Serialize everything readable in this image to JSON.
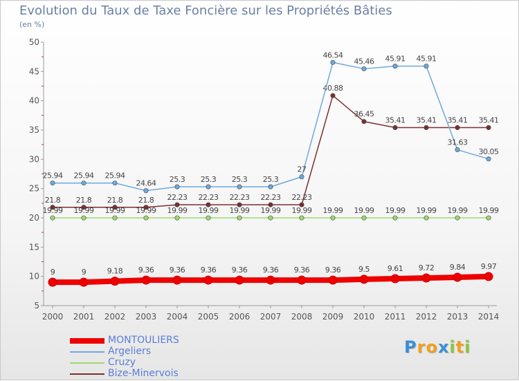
{
  "title": "Evolution du Taux de Taxe Foncière sur les Propriétés Bâties",
  "subtitle": "(en %)",
  "chart_data": {
    "type": "line",
    "title": "Evolution du Taux de Taxe Foncière sur les Propriétés Bâties",
    "ylabel": "(en %)",
    "xlabel": "",
    "ylim": [
      5,
      50
    ],
    "yticks": [
      5,
      10,
      15,
      20,
      25,
      30,
      35,
      40,
      45,
      50
    ],
    "grid": false,
    "legend": "bottom-left",
    "categories": [
      "2000",
      "2001",
      "2002",
      "2003",
      "2004",
      "2005",
      "2006",
      "2007",
      "2008",
      "2009",
      "2010",
      "2011",
      "2012",
      "2013",
      "2014"
    ],
    "series": [
      {
        "name": "MONTOULIERS",
        "color": "#ee0000",
        "labels": [
          "9",
          "9",
          "9.18",
          "9.36",
          "9.36",
          "9.36",
          "9.36",
          "9.36",
          "9.36",
          "9.36",
          "9.5",
          "9.61",
          "9.72",
          "9.84",
          "9.97"
        ],
        "values": [
          9,
          9,
          9.18,
          9.36,
          9.36,
          9.36,
          9.36,
          9.36,
          9.36,
          9.36,
          9.5,
          9.61,
          9.72,
          9.84,
          9.97
        ]
      },
      {
        "name": "Argeliers",
        "color": "#6fa8dc",
        "labels": [
          "25.94",
          "25.94",
          "25.94",
          "24.64",
          "25.3",
          "25.3",
          "25.3",
          "25.3",
          "27",
          "46.54",
          "45.46",
          "45.91",
          "45.91",
          "31.63",
          "30.05"
        ],
        "values": [
          25.94,
          25.94,
          25.94,
          24.64,
          25.3,
          25.3,
          25.3,
          25.3,
          27,
          46.54,
          45.46,
          45.91,
          45.91,
          31.63,
          30.05
        ]
      },
      {
        "name": "Cruzy",
        "color": "#9fd86f",
        "labels": [
          "19.99",
          "19.99",
          "19.99",
          "19.99",
          "19.99",
          "19.99",
          "19.99",
          "19.99",
          "19.99",
          "19.99",
          "19.99",
          "19.99",
          "19.99",
          "19.99",
          "19.99"
        ],
        "values": [
          19.99,
          19.99,
          19.99,
          19.99,
          19.99,
          19.99,
          19.99,
          19.99,
          19.99,
          19.99,
          19.99,
          19.99,
          19.99,
          19.99,
          19.99
        ]
      },
      {
        "name": "Bize-Minervois",
        "color": "#7a2f2f",
        "labels": [
          "21.8",
          "21.8",
          "21.8",
          "21.8",
          "22.23",
          "22.23",
          "22.23",
          "22.23",
          "22.23",
          "40.88",
          "36.45",
          "35.41",
          "35.41",
          "35.41",
          "35.41"
        ],
        "values": [
          21.8,
          21.8,
          21.8,
          21.8,
          22.23,
          22.23,
          22.23,
          22.23,
          22.23,
          40.88,
          36.45,
          35.41,
          35.41,
          35.41,
          35.41
        ]
      }
    ]
  },
  "legend": {
    "items": [
      {
        "label": "MONTOULIERS",
        "color": "#ee0000"
      },
      {
        "label": "Argeliers",
        "color": "#6fa8dc"
      },
      {
        "label": "Cruzy",
        "color": "#9fd86f"
      },
      {
        "label": "Bize-Minervois",
        "color": "#7a2f2f"
      }
    ]
  },
  "logo": {
    "letters": [
      "P",
      "r",
      "o",
      "x",
      "i",
      "t",
      "i"
    ],
    "colors": [
      "#3a8fd6",
      "#f0a020",
      "#f0a020",
      "#3a8fd6",
      "#8cc63f",
      "#f0a020",
      "#8cc63f"
    ]
  }
}
